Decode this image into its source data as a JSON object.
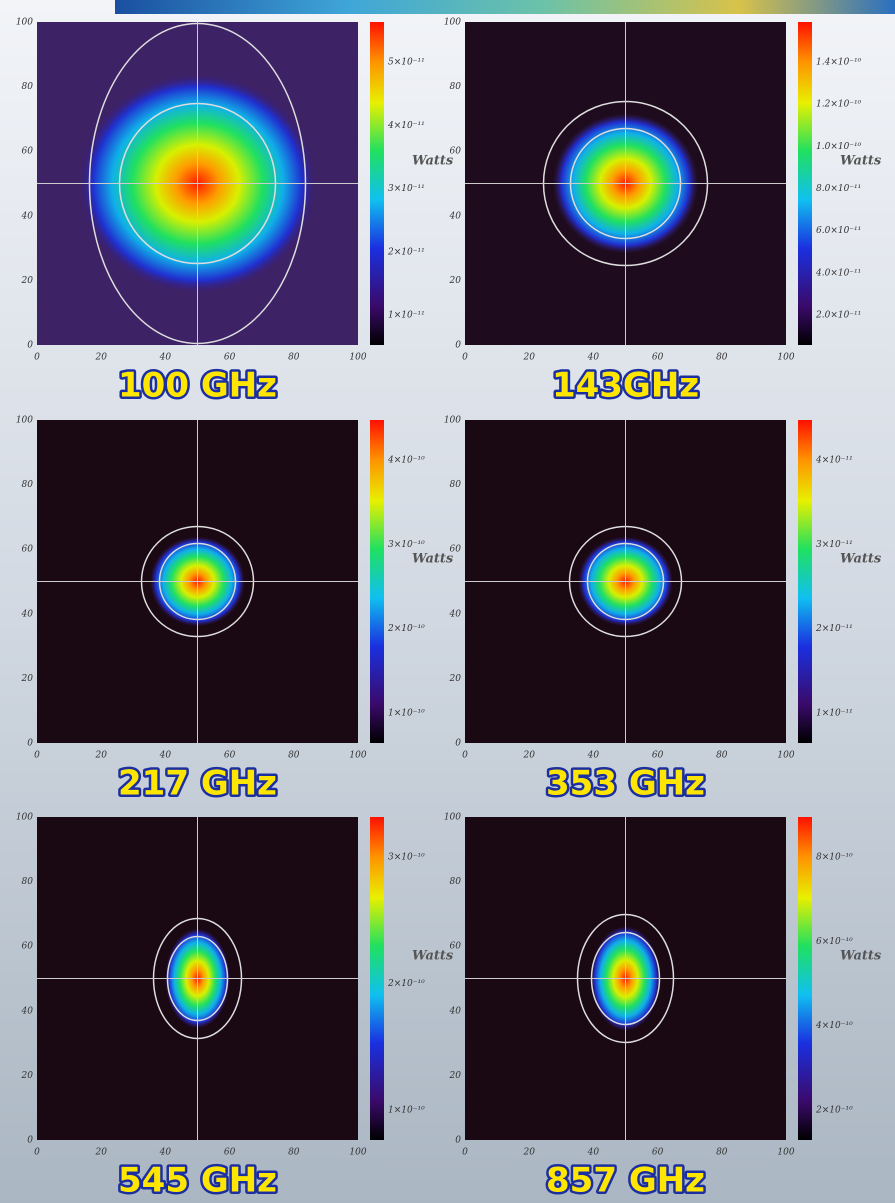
{
  "panels": [
    {
      "label": "100 GHz",
      "unit": "Watts",
      "xticks": [
        0,
        20,
        40,
        60,
        80,
        100
      ],
      "yticks": [
        0,
        20,
        40,
        60,
        80,
        100
      ],
      "colorbar_labels": [
        "5×10⁻¹¹",
        "4×10⁻¹¹",
        "3×10⁻¹¹",
        "2×10⁻¹¹",
        "1×10⁻¹¹"
      ]
    },
    {
      "label": "143GHz",
      "unit": "Watts",
      "xticks": [
        0,
        20,
        40,
        60,
        80,
        100
      ],
      "yticks": [
        0,
        20,
        40,
        60,
        80,
        100
      ],
      "colorbar_labels": [
        "1.4×10⁻¹⁰",
        "1.2×10⁻¹⁰",
        "1.0×10⁻¹⁰",
        "8.0×10⁻¹¹",
        "6.0×10⁻¹¹",
        "4.0×10⁻¹¹",
        "2.0×10⁻¹¹"
      ]
    },
    {
      "label": "217 GHz",
      "unit": "Watts",
      "xticks": [
        0,
        20,
        40,
        60,
        80,
        100
      ],
      "yticks": [
        0,
        20,
        40,
        60,
        80,
        100
      ],
      "colorbar_labels": [
        "4×10⁻¹⁰",
        "3×10⁻¹⁰",
        "2×10⁻¹⁰",
        "1×10⁻¹⁰"
      ]
    },
    {
      "label": "353 GHz",
      "unit": "Watts",
      "xticks": [
        0,
        20,
        40,
        60,
        80,
        100
      ],
      "yticks": [
        0,
        20,
        40,
        60,
        80,
        100
      ],
      "colorbar_labels": [
        "4×10⁻¹¹",
        "3×10⁻¹¹",
        "2×10⁻¹¹",
        "1×10⁻¹¹"
      ]
    },
    {
      "label": "545 GHz",
      "unit": "Watts",
      "xticks": [
        0,
        20,
        40,
        60,
        80,
        100
      ],
      "yticks": [
        0,
        20,
        40,
        60,
        80,
        100
      ],
      "colorbar_labels": [
        "3×10⁻¹⁰",
        "2×10⁻¹⁰",
        "1×10⁻¹⁰"
      ]
    },
    {
      "label": "857 GHz",
      "unit": "Watts",
      "xticks": [
        0,
        20,
        40,
        60,
        80,
        100
      ],
      "yticks": [
        0,
        20,
        40,
        60,
        80,
        100
      ],
      "colorbar_labels": [
        "8×10⁻¹⁰",
        "6×10⁻¹⁰",
        "4×10⁻¹⁰",
        "2×10⁻¹⁰"
      ]
    }
  ]
}
